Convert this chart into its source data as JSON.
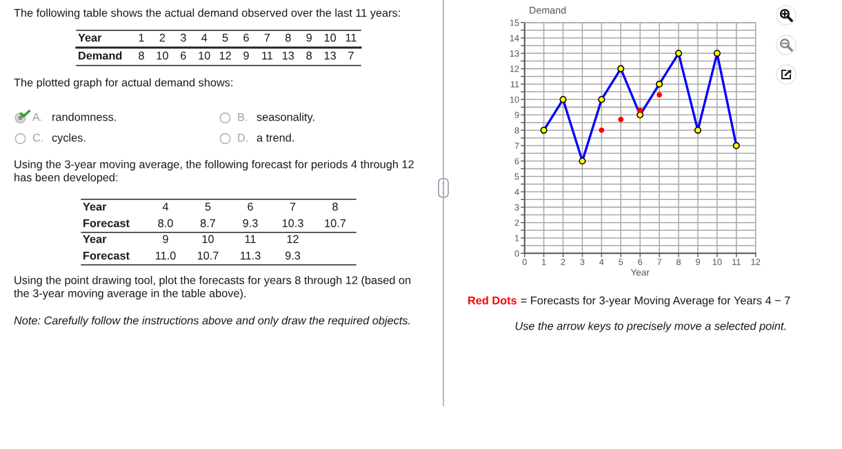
{
  "chart_data": {
    "type": "line",
    "ylabel": "Demand",
    "xlabel": "Year",
    "series": [
      {
        "x": [
          1,
          2,
          3,
          4,
          5,
          6,
          7,
          8,
          9,
          10,
          11
        ],
        "values": [
          8,
          10,
          6,
          10,
          12,
          9,
          11,
          13,
          8,
          13,
          7
        ],
        "color": "#0000ff",
        "colors": [
          "#ffff00",
          "#ffff00",
          "#ffff00",
          "#ffff00",
          "#ffff00",
          "#ffff00",
          "#ffff00",
          "#ffff00",
          "#ffff00",
          "#ffff00",
          "#ffff00"
        ]
      },
      {
        "name": "Red Dots",
        "type": "scatter",
        "x": [
          4,
          5,
          6,
          7
        ],
        "values": [
          8.0,
          8.7,
          9.3,
          10.3
        ],
        "color": "#ff0000"
      }
    ],
    "xlim": [
      0,
      12
    ],
    "ylim": [
      0,
      15
    ],
    "xticks": [
      0,
      1,
      2,
      3,
      4,
      5,
      6,
      7,
      8,
      9,
      10,
      11,
      12
    ],
    "yticks": [
      0,
      {
        "value": 0.5,
        "label": null
      },
      1,
      {
        "value": 1.5,
        "label": null
      },
      2,
      {
        "value": 2.5,
        "label": null
      },
      3,
      {
        "value": 3.5,
        "label": null
      },
      4,
      {
        "value": 4.5,
        "label": null
      },
      5,
      {
        "value": 5.5,
        "label": null
      },
      6,
      {
        "value": 6.5,
        "label": null
      },
      7,
      {
        "value": 7.5,
        "label": null
      },
      8,
      {
        "value": 8.5,
        "label": null
      },
      9,
      {
        "value": 9.5,
        "label": null
      },
      10,
      {
        "value": 10.5,
        "label": null
      },
      11,
      {
        "value": 11.5,
        "label": null
      },
      12,
      {
        "value": 12.5,
        "label": null
      },
      13,
      {
        "value": 13.5,
        "label": null
      },
      14,
      {
        "value": 14.5,
        "label": null
      },
      15
    ],
    "grid": true,
    "marker": "circle",
    "line_style": "solid",
    "legend": "bottom",
    "annotations": [
      "The following table shows the actual demand observed over the last 11 years:",
      "Year 1 2 3 4 5 6 7 8 9 10 11",
      "Demand 8 10 6 10 12 9 11 13 8 13 7",
      "The plotted graph for actual demand shows:",
      "A. randomness.",
      "B. seasonality.",
      "C. cycles.",
      "D. a trend.",
      "Using the 3-year moving average, the following forecast for periods 4 through 12 has been developed:",
      "Year 4 5 6 7 8",
      "Forecast 8.0 8.7 9.3 10.3 10.7",
      "Year 9 10 11 12",
      "Forecast 11.0 10.7 11.3 9.3",
      "Using the point drawing tool, plot the forecasts for years 8 through 12 (based on the 3-year moving average in the table above).",
      "Note: Carefully follow the instructions above and only draw the required objects.",
      "= Forecasts for 3-year Moving Average for Years 4 − 7",
      "Use the arrow keys to precisely move a selected point."
    ]
  }
}
